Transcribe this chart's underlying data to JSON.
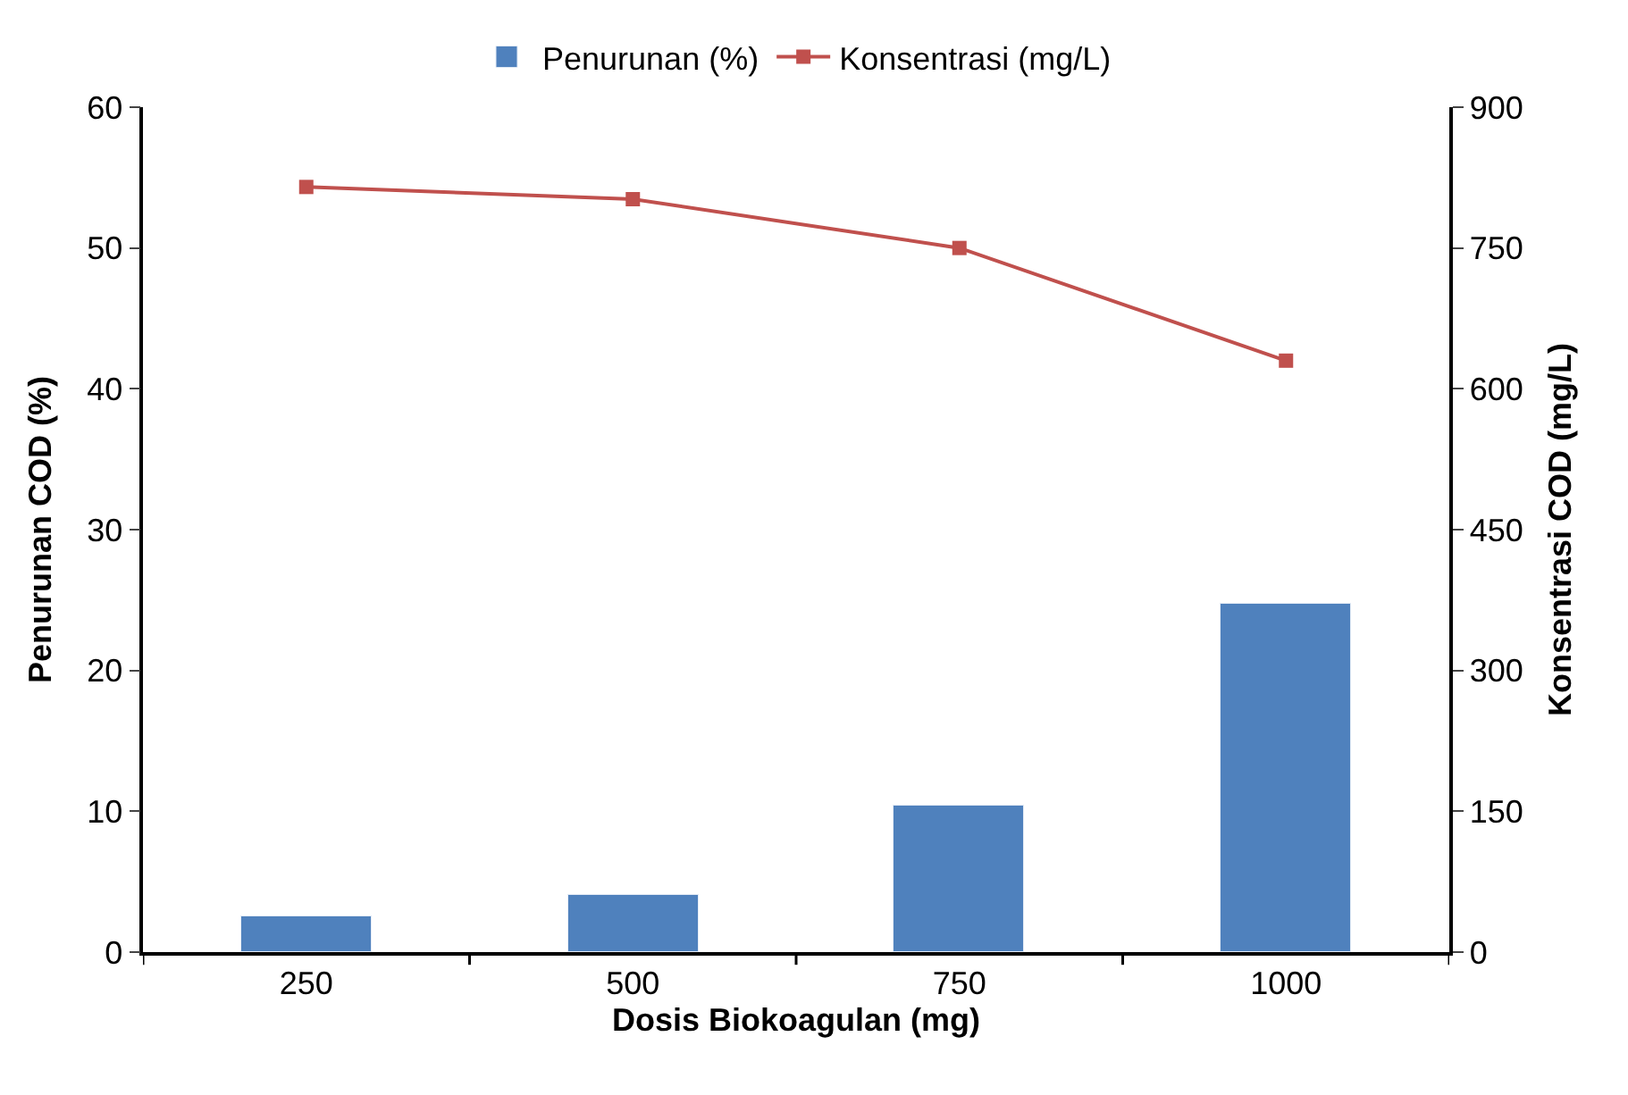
{
  "chart_data": {
    "type": "bar",
    "categories": [
      "250",
      "500",
      "750",
      "1000"
    ],
    "xlabel": "Dosis Biokoagulan (mg)",
    "ylabel": "Penurunan COD (%)",
    "y2label": "Konsentrasi COD (mg/L)",
    "series": [
      {
        "name": "Penurunan (%)",
        "color": "#4f81bd",
        "values": [
          2.6,
          4.1,
          10.4,
          24.7
        ]
      },
      {
        "name": "Konsentrasi (mg/L)",
        "type": "line",
        "axis": "y2",
        "color": "#c0504d",
        "marker": "square",
        "values": [
          815,
          802,
          750,
          630
        ]
      }
    ],
    "ylim": [
      0,
      60
    ],
    "yticks": [
      0,
      10,
      20,
      30,
      40,
      50,
      60
    ],
    "y2lim": [
      0,
      900
    ],
    "y2ticks": [
      0,
      150,
      300,
      450,
      600,
      750,
      900
    ],
    "legend": "top"
  }
}
